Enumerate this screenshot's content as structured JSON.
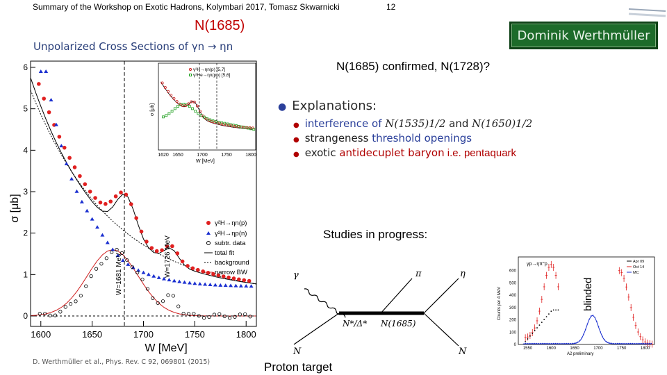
{
  "header": {
    "left": "Summary of the Workshop on Exotic Hadrons, Kolymbari 2017, Tomasz Skwarnicki",
    "page": "12"
  },
  "title": "N(1685)",
  "author_box": "Dominik Werthmüller",
  "subtitle": "Unpolarized Cross Sections of γn → ηn",
  "confirmed_text": "N(1685) confirmed, N(1728)?",
  "explanations": {
    "heading": "Explanations:",
    "item1_a": "interference of ",
    "item1_b": "N(1535)1/2",
    "item1_c": " and ",
    "item1_d": "N(1650)1/2",
    "item2_a": "strangeness ",
    "item2_b": "threshold openings",
    "item3_a": "exotic ",
    "item3_b": "antidecuplet baryon",
    "item3_c": "  i.e. pentaquark"
  },
  "studies": "Studies in progress:",
  "blinded": "blinded",
  "proton_target": "Proton target",
  "reference": "D. Werthmüller et al., Phys. Rev. C 92, 069801 (2015)",
  "main_plot": {
    "ylabel": "σ [μb]",
    "xlabel": "W [MeV]",
    "xticks": [
      "1600",
      "1650",
      "1700",
      "1750",
      "1800"
    ],
    "yticks": [
      "0",
      "1",
      "2",
      "3",
      "4",
      "5",
      "6"
    ],
    "line1": "W=1681 MeV",
    "line2": "W=1726 MeV",
    "legend": [
      "γ²H→ηn(p)",
      "γ²H→ηp(n)",
      "subtr. data",
      "total fit",
      "background",
      "narrow BW"
    ]
  },
  "inset_plot": {
    "ylabel": "σ [μb]",
    "xlabel": "W [MeV]",
    "xticks": [
      "1620",
      "1650",
      "1700",
      "1750",
      "1800"
    ],
    "legend": [
      "γ²H→ηn(p)   [5,7]",
      "γ²He→ηn(pp)  [5,6]"
    ]
  },
  "feynman": {
    "gamma": "γ",
    "pi": "π",
    "eta": "η",
    "n_left": "N",
    "n_right": "N",
    "resonance": "N*/Δ*",
    "res2": "N(1685)"
  },
  "right_plot": {
    "title": "γp→ηπ°p",
    "legend": [
      "Apr 09",
      "Oct 14",
      "MC"
    ],
    "ylabel": "Counts per 4 MeV",
    "xlabel": "A2 preliminary",
    "yticks": [
      "0",
      "100",
      "200",
      "300",
      "400",
      "500",
      "600"
    ],
    "xticks": [
      "1550",
      "1600",
      "1650",
      "1700",
      "1750",
      "1800"
    ]
  },
  "colors": {
    "title_red": "#c00000",
    "accent_blue": "#2a3f9a",
    "name_box_green": "#1d6b2a",
    "neutron_red": "#e02020",
    "proton_blue": "#1a2fd0"
  }
}
